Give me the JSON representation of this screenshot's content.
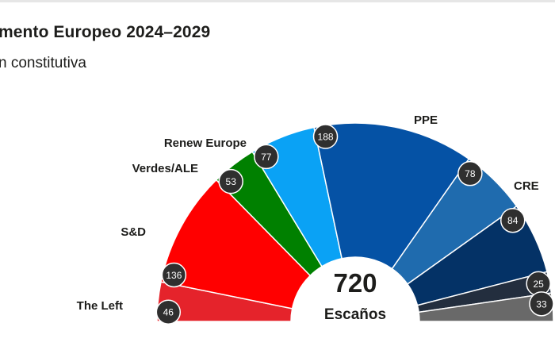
{
  "header": {
    "title": "mento Europeo 2024–2029",
    "subtitle": "n constitutiva"
  },
  "chart_data": {
    "type": "pie",
    "total": "720",
    "total_label": "Escaños",
    "segments": [
      {
        "label": "The Left",
        "value": 46,
        "color": "#e5232b"
      },
      {
        "label": "S&D",
        "value": 136,
        "color": "#ff0000"
      },
      {
        "label": "Verdes/ALE",
        "value": 53,
        "color": "#008000"
      },
      {
        "label": "Renew Europe",
        "value": 77,
        "color": "#0aa2f5"
      },
      {
        "label": "PPE",
        "value": 188,
        "color": "#0552a5"
      },
      {
        "label": "CRE",
        "value": 78,
        "color": "#1f6bae"
      },
      {
        "label": "",
        "value": 84,
        "color": "#043266"
      },
      {
        "label": "",
        "value": 25,
        "color": "#232e3e"
      },
      {
        "label": "",
        "value": 33,
        "color": "#696969"
      }
    ]
  }
}
